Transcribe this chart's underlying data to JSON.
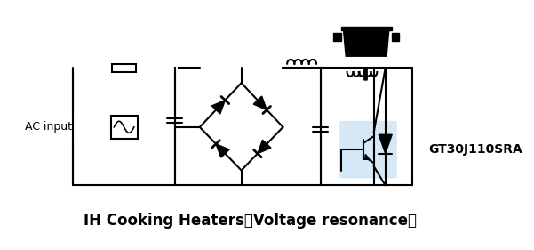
{
  "title": "IH Cooking Heaters（Voltage resonance）",
  "title_fontsize": 13,
  "background_color": "#ffffff",
  "line_color": "#000000",
  "highlight_color": "#d6e8f5",
  "label_ac": "AC input",
  "label_part": "GT30J110SRA",
  "fig_width": 6.01,
  "fig_height": 2.81
}
